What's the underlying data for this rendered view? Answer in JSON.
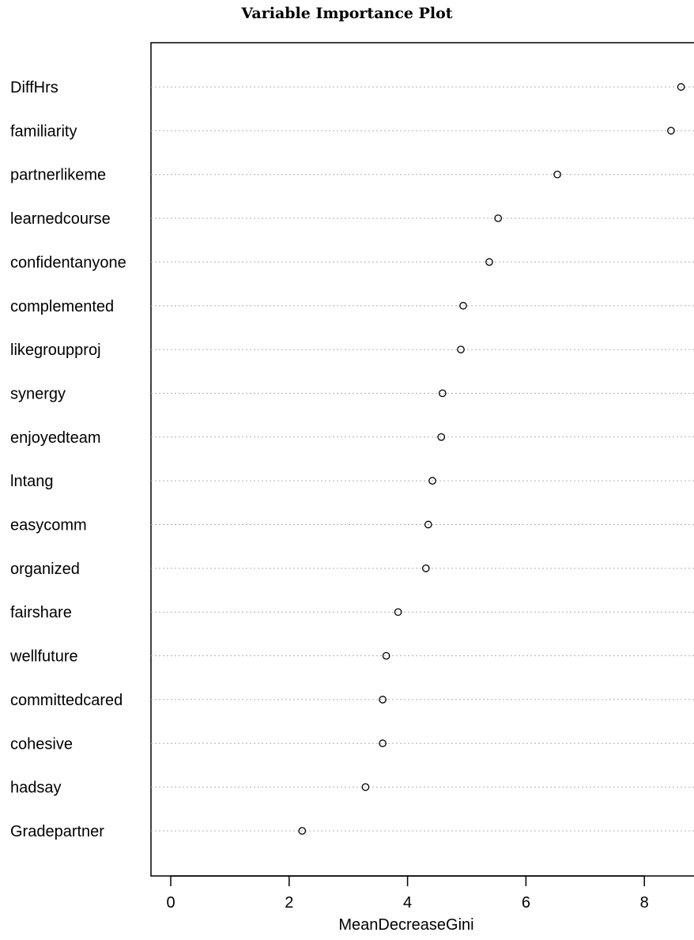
{
  "chart_data": {
    "type": "scatter",
    "title": "Variable Importance Plot",
    "xlabel": "MeanDecreaseGini",
    "ylabel": "",
    "xlim": [
      -0.35,
      8.75
    ],
    "xticks": [
      0,
      2,
      4,
      6,
      8
    ],
    "grid": "dotted horizontal lines per variable",
    "categories": [
      "DiffHrs",
      "familiarity",
      "partnerlikeme",
      "learnedcourse",
      "confidentanyone",
      "complemented",
      "likegroupproj",
      "synergy",
      "enjoyedteam",
      "lntang",
      "easycomm",
      "organized",
      "fairshare",
      "wellfuture",
      "committedcared",
      "cohesive",
      "hadsay",
      "Gradepartner"
    ],
    "values": [
      8.62,
      8.45,
      6.53,
      5.53,
      5.38,
      4.94,
      4.9,
      4.59,
      4.57,
      4.42,
      4.35,
      4.31,
      3.84,
      3.64,
      3.58,
      3.58,
      3.29,
      2.22
    ]
  }
}
